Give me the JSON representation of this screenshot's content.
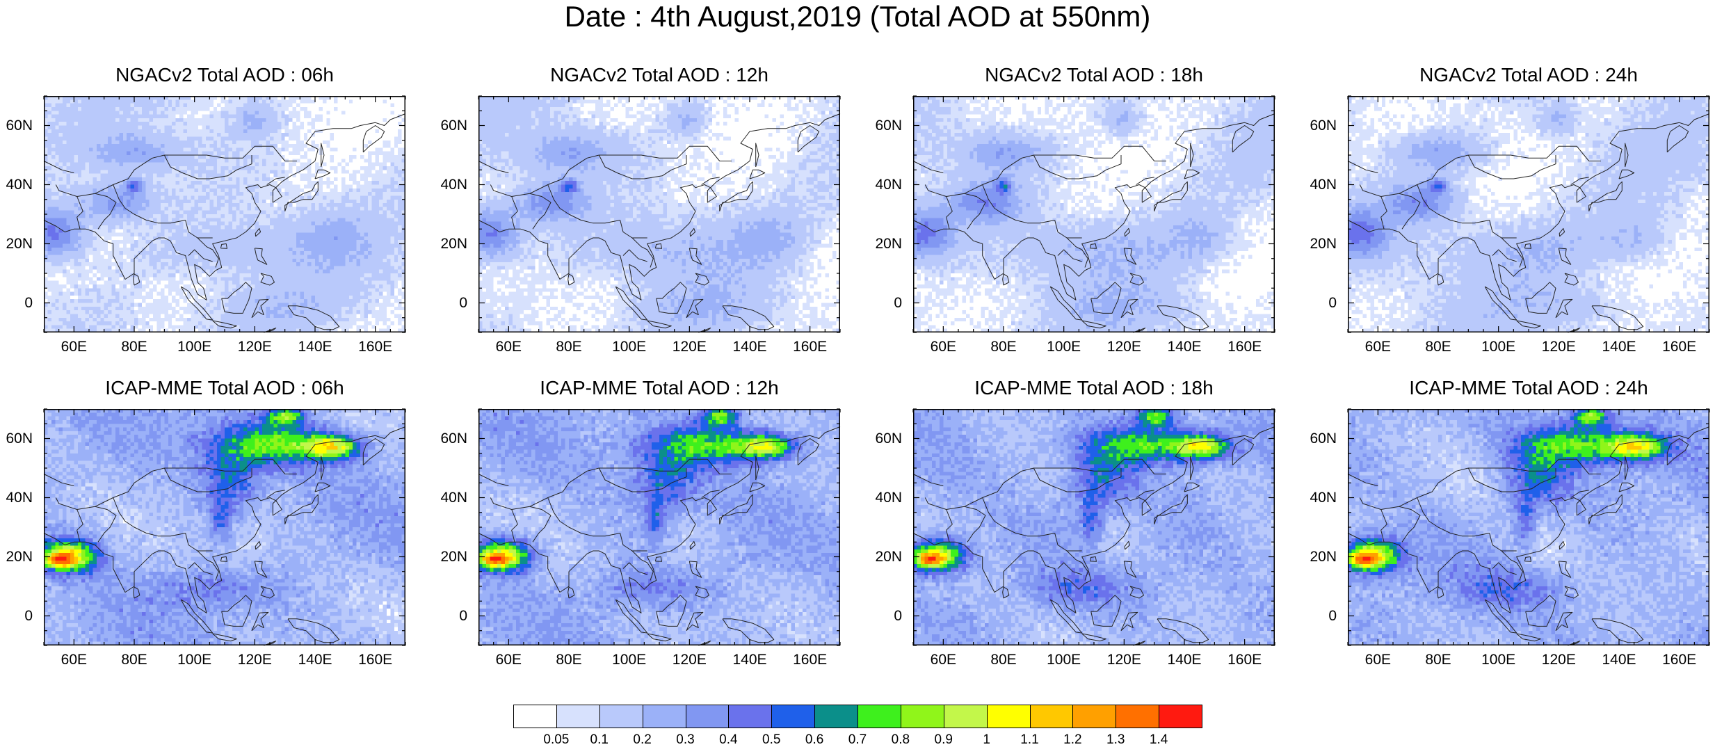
{
  "title": "Date : 4th August,2019 (Total AOD at 550nm)",
  "map_region": {
    "lon_min": 50,
    "lon_max": 170,
    "lat_min": -10,
    "lat_max": 70
  },
  "y_tick_labels": [
    {
      "lat": 60,
      "label": "60N"
    },
    {
      "lat": 40,
      "label": "40N"
    },
    {
      "lat": 20,
      "label": "20N"
    },
    {
      "lat": 0,
      "label": "0"
    }
  ],
  "x_tick_labels": [
    {
      "lon": 60,
      "label": "60E"
    },
    {
      "lon": 80,
      "label": "80E"
    },
    {
      "lon": 100,
      "label": "100E"
    },
    {
      "lon": 120,
      "label": "120E"
    },
    {
      "lon": 140,
      "label": "140E"
    },
    {
      "lon": 160,
      "label": "160E"
    }
  ],
  "panels": [
    {
      "model": "NGACv2",
      "title": "NGACv2 Total AOD : 06h",
      "hour": "06h"
    },
    {
      "model": "NGACv2",
      "title": "NGACv2 Total AOD : 12h",
      "hour": "12h"
    },
    {
      "model": "NGACv2",
      "title": "NGACv2 Total AOD : 18h",
      "hour": "18h"
    },
    {
      "model": "NGACv2",
      "title": "NGACv2 Total AOD : 24h",
      "hour": "24h"
    },
    {
      "model": "ICAP-MME",
      "title": "ICAP-MME Total AOD : 06h",
      "hour": "06h"
    },
    {
      "model": "ICAP-MME",
      "title": "ICAP-MME Total AOD : 12h",
      "hour": "12h"
    },
    {
      "model": "ICAP-MME",
      "title": "ICAP-MME Total AOD : 18h",
      "hour": "18h"
    },
    {
      "model": "ICAP-MME",
      "title": "ICAP-MME Total AOD : 24h",
      "hour": "24h"
    }
  ],
  "colorbar": {
    "labels": [
      "0.05",
      "0.1",
      "0.2",
      "0.3",
      "0.4",
      "0.5",
      "0.6",
      "0.7",
      "0.8",
      "0.9",
      "1",
      "1.1",
      "1.2",
      "1.3",
      "1.4"
    ],
    "colors": [
      "#ffffff",
      "#d7e1fd",
      "#b9c9fb",
      "#9bb1f8",
      "#8197f2",
      "#6a72ec",
      "#1f60ea",
      "#0b8f8a",
      "#3ef01d",
      "#90f51a",
      "#c3f74a",
      "#ffff00",
      "#ffc800",
      "#ffa000",
      "#ff7000",
      "#ff1a10"
    ]
  }
}
